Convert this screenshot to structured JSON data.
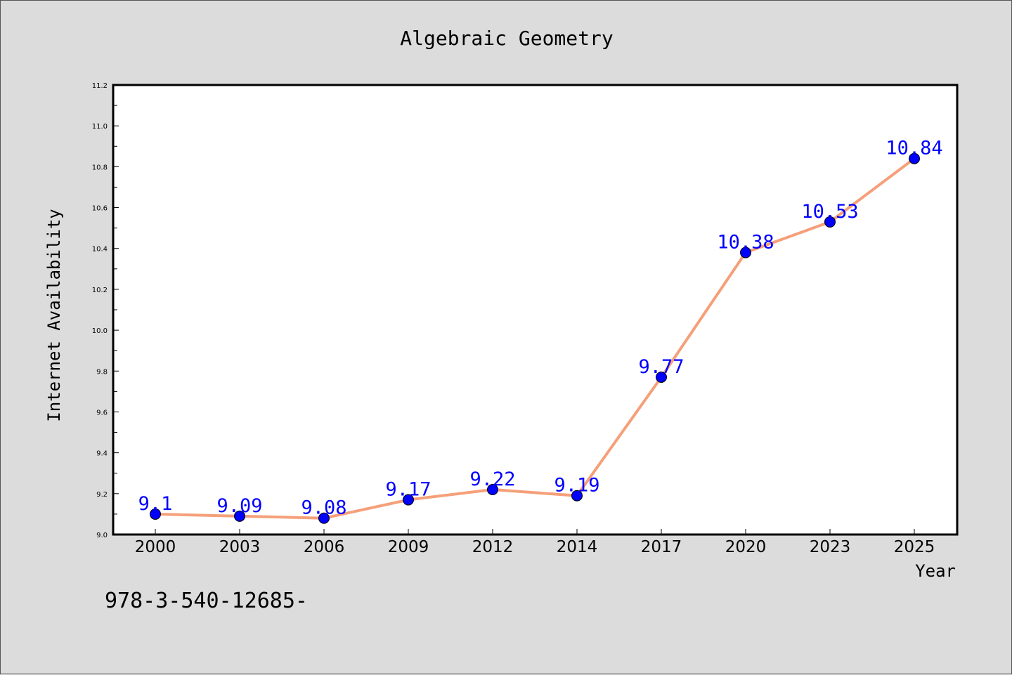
{
  "chart_data": {
    "type": "line",
    "title": "Algebraic Geometry",
    "xlabel": "Year",
    "ylabel": "Internet Availability",
    "categories": [
      "2000",
      "2003",
      "2006",
      "2009",
      "2012",
      "2014",
      "2017",
      "2020",
      "2023",
      "2025"
    ],
    "series": [
      {
        "values": [
          9.1,
          9.09,
          9.08,
          9.17,
          9.22,
          9.19,
          9.77,
          10.38,
          10.53,
          10.84
        ],
        "labels": [
          "9.1",
          "9.09",
          "9.08",
          "9.17",
          "9.22",
          "9.19",
          "9.77",
          "10.38",
          "10.53",
          "10.84"
        ],
        "line_color": "#f5a07a",
        "marker_color": "#0000ff"
      }
    ],
    "ylim": [
      9.0,
      11.2
    ],
    "yticks": [
      "9.0",
      "9.2",
      "9.4",
      "9.6",
      "9.8",
      "10.0",
      "10.2",
      "10.4",
      "10.6",
      "10.8",
      "11.0",
      "11.2"
    ],
    "grid": false,
    "legend": "none"
  },
  "footer": {
    "text": "978-3-540-12685-"
  },
  "colors": {
    "background": "#dcdcdc",
    "plot_background": "#ffffff",
    "line": "#f5a07a",
    "marker": "#0000ff",
    "data_label": "#0000ff"
  }
}
